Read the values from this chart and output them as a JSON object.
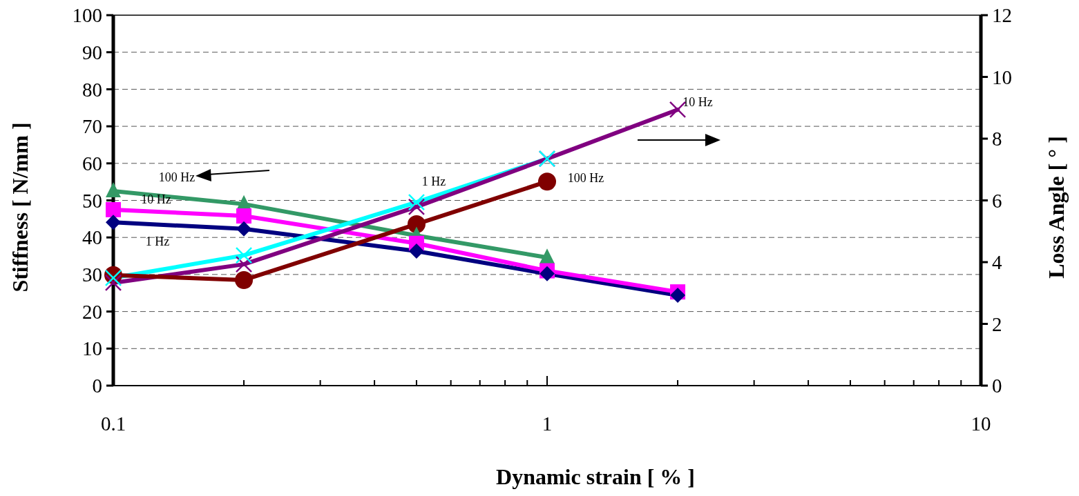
{
  "chart_data": {
    "type": "line",
    "xlabel": "Dynamic strain [ % ]",
    "ylabel": "Stiffness [ N/mm ]",
    "y2label": "Loss Angle  [ ° ]",
    "log": "x",
    "xlim": [
      0.1,
      10
    ],
    "xticks": [
      0.1,
      {
        "value": 0.2,
        "label": null
      },
      {
        "value": 0.3,
        "label": null
      },
      {
        "value": 0.4,
        "label": null
      },
      {
        "value": 0.5,
        "label": null
      },
      {
        "value": 0.6,
        "label": null
      },
      {
        "value": 0.7,
        "label": null
      },
      {
        "value": 0.8,
        "label": null
      },
      {
        "value": 0.9,
        "label": null
      },
      1,
      {
        "value": 2,
        "label": null
      },
      {
        "value": 3,
        "label": null
      },
      {
        "value": 4,
        "label": null
      },
      {
        "value": 5,
        "label": null
      },
      {
        "value": 6,
        "label": null
      },
      {
        "value": 7,
        "label": null
      },
      {
        "value": 8,
        "label": null
      },
      {
        "value": 9,
        "label": null
      },
      10
    ],
    "ylim": [
      0,
      100
    ],
    "yticks": [
      0,
      10,
      20,
      30,
      40,
      50,
      60,
      70,
      80,
      90,
      100
    ],
    "y2lim": [
      0,
      12
    ],
    "y2ticks": [
      0,
      2,
      4,
      6,
      8,
      10,
      12
    ],
    "grid": "y",
    "line_style": "solid",
    "x": [
      0.1,
      0.2,
      0.5,
      1,
      2
    ],
    "series": [
      {
        "color": "#000080",
        "marker": "diamond",
        "values": [
          44.1,
          42.3,
          36.3,
          30.2,
          24.4
        ]
      },
      {
        "color": "#ff00ff",
        "marker": "square",
        "values": [
          47.5,
          45.8,
          38.4,
          31,
          25.3
        ]
      },
      {
        "color": "#339966",
        "marker": "triangle",
        "values": [
          52.5,
          49,
          40.5,
          34.6,
          null
        ]
      },
      {
        "color": "#00ffff",
        "marker": "cross",
        "axis": "y2",
        "values": [
          3.49,
          4.22,
          5.94,
          7.35,
          null
        ]
      },
      {
        "color": "#800080",
        "marker": "cross",
        "axis": "y2",
        "values": [
          3.33,
          3.93,
          5.79,
          7.35,
          8.94
        ]
      },
      {
        "color": "#800000",
        "marker": "circle",
        "axis": "y2",
        "values": [
          3.58,
          3.42,
          5.23,
          6.61,
          null
        ]
      }
    ],
    "annotations": [
      "100 Hz",
      "10 Hz",
      "1 Hz",
      "1 Hz",
      "100 Hz",
      "10 Hz"
    ]
  }
}
